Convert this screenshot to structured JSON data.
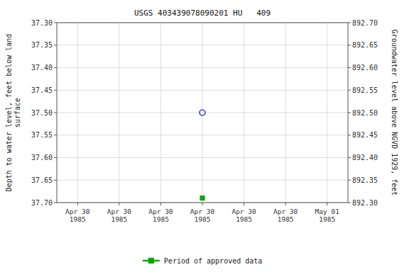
{
  "chart_data": {
    "type": "scatter",
    "title": "USGS 403439078090201 HU   409",
    "ylabel": "Depth to water level, feet below land\nsurface",
    "y2label": "Groundwater level above NGVD 1929, feet",
    "categories": [
      "Apr 30\n1985",
      "Apr 30\n1985",
      "Apr 30\n1985",
      "Apr 30\n1985",
      "Apr 30\n1985",
      "Apr 30\n1985",
      "May 01\n1985"
    ],
    "series": [
      {
        "color": "#0000bb",
        "marker": "open-circle",
        "values": [
          null,
          null,
          null,
          37.5,
          null,
          null,
          null
        ]
      },
      {
        "name": "Period of approved data",
        "color": "#00aa00",
        "marker": "square",
        "values": [
          null,
          null,
          null,
          37.69,
          null,
          null,
          null
        ]
      }
    ],
    "ylim": [
      37.7,
      37.3
    ],
    "yticks": [
      {
        "value": 37.3,
        "label": "37.30"
      },
      {
        "value": 37.35,
        "label": "37.35"
      },
      {
        "value": 37.4,
        "label": "37.40"
      },
      {
        "value": 37.45,
        "label": "37.45"
      },
      {
        "value": 37.5,
        "label": "37.50"
      },
      {
        "value": 37.55,
        "label": "37.55"
      },
      {
        "value": 37.6,
        "label": "37.60"
      },
      {
        "value": 37.65,
        "label": "37.65"
      },
      {
        "value": 37.7,
        "label": "37.70"
      }
    ],
    "y2lim": [
      892.3,
      892.7
    ],
    "y2ticks": [
      {
        "value": 892.7,
        "label": "892.70"
      },
      {
        "value": 892.65,
        "label": "892.65"
      },
      {
        "value": 892.6,
        "label": "892.60"
      },
      {
        "value": 892.55,
        "label": "892.55"
      },
      {
        "value": 892.5,
        "label": "892.50"
      },
      {
        "value": 892.45,
        "label": "892.45"
      },
      {
        "value": 892.4,
        "label": "892.40"
      },
      {
        "value": 892.35,
        "label": "892.35"
      },
      {
        "value": 892.3,
        "label": "892.30"
      }
    ],
    "grid": true,
    "legend": "bottom"
  }
}
